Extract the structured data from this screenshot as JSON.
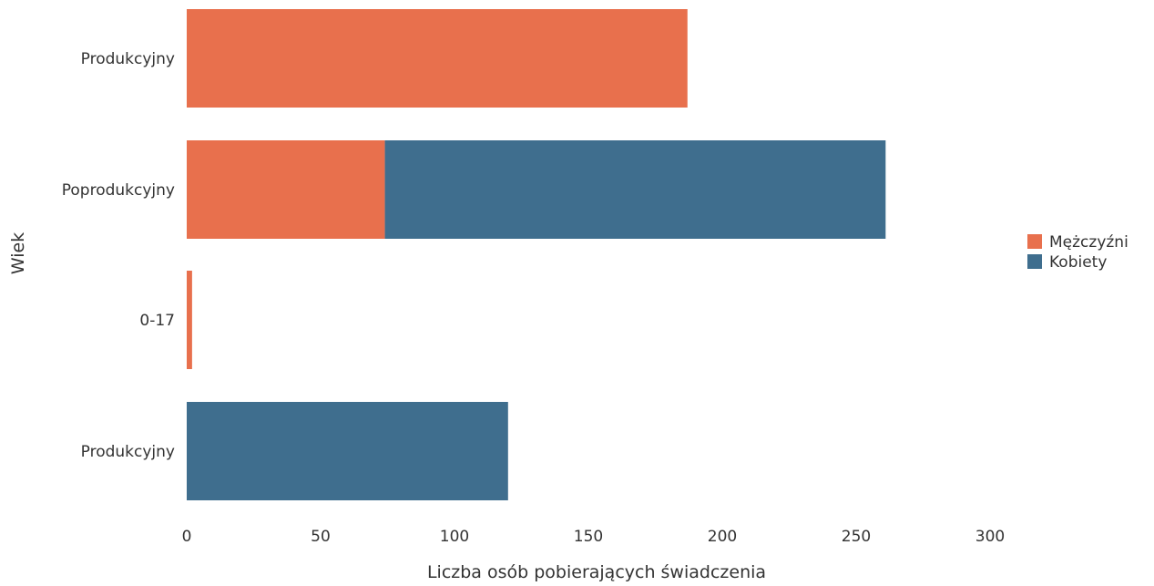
{
  "chart_data": {
    "type": "bar",
    "orientation": "horizontal",
    "stacked": true,
    "categories": [
      "Produkcyjny",
      "Poprodukcyjny",
      "0-17",
      "Produkcyjny"
    ],
    "series": [
      {
        "name": "Mężczyźni",
        "color": "#e8704d",
        "values": [
          187,
          74,
          2,
          0
        ]
      },
      {
        "name": "Kobiety",
        "color": "#3f6e8e",
        "values": [
          0,
          187,
          0,
          120
        ]
      }
    ],
    "xlabel": "Liczba osób pobierających świadczenia",
    "ylabel": "Wiek",
    "xlim": [
      0,
      300
    ],
    "xticks": [
      "0",
      "50",
      "100",
      "150",
      "200",
      "250",
      "300"
    ],
    "grid": false,
    "legend_position": "right"
  }
}
